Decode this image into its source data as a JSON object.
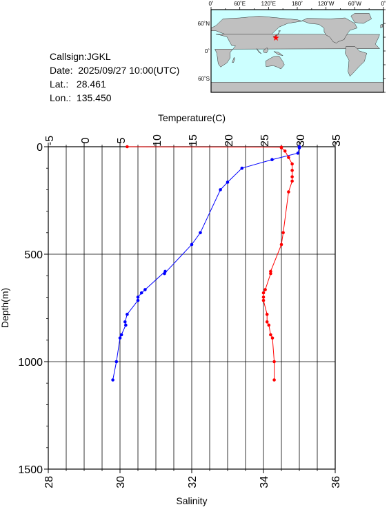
{
  "info": {
    "callsign_label": "Callsign:",
    "callsign": "JGKL",
    "date_label": "Date:",
    "date": "2025/09/27 10:00(UTC)",
    "lat_label": "Lat.:",
    "lat": "28.461",
    "lon_label": "Lon.:",
    "lon": "135.450"
  },
  "map": {
    "top_labels": [
      "0˚",
      "60˚E",
      "120˚E",
      "180˚",
      "120˚W",
      "60˚W",
      "0˚"
    ],
    "right_labels": [
      "60˚N",
      "0˚",
      "60˚S"
    ],
    "land_color": "#c0c0c0",
    "ocean_color": "#ccffff",
    "marker_color": "#ff0000",
    "station_lon": 135.45,
    "station_lat": 28.461
  },
  "chart_data": {
    "type": "line",
    "xlabel_top": "Temperature(C)",
    "xlabel_bottom": "Salinity",
    "ylabel": "Depth(m)",
    "top_ticks": [
      "-5",
      "0",
      "5",
      "10",
      "15",
      "20",
      "25",
      "30",
      "35"
    ],
    "bottom_ticks": [
      "28",
      "30",
      "32",
      "34",
      "36"
    ],
    "y_ticks": [
      "0",
      "500",
      "1000",
      "1500"
    ],
    "temperature_range": [
      -5,
      35
    ],
    "salinity_range": [
      28,
      36
    ],
    "depth_range": [
      0,
      1500
    ],
    "grid": true,
    "series": [
      {
        "quantity": "temperature",
        "color": "#0000ff",
        "points": [
          [
            30.0,
            0
          ],
          [
            30.0,
            2
          ],
          [
            30.0,
            5
          ],
          [
            29.8,
            30
          ],
          [
            26.2,
            60
          ],
          [
            22.0,
            100
          ],
          [
            20.0,
            165
          ],
          [
            19.0,
            200
          ],
          [
            16.2,
            400
          ],
          [
            15.0,
            455
          ],
          [
            11.2,
            590
          ],
          [
            11.3,
            580
          ],
          [
            8.5,
            665
          ],
          [
            8.0,
            680
          ],
          [
            7.5,
            700
          ],
          [
            7.5,
            715
          ],
          [
            6.0,
            780
          ],
          [
            5.7,
            815
          ],
          [
            5.8,
            830
          ],
          [
            5.2,
            875
          ],
          [
            5.0,
            890
          ],
          [
            4.5,
            1000
          ],
          [
            4.0,
            1085
          ]
        ]
      },
      {
        "quantity": "salinity",
        "color": "#ff0000",
        "points": [
          [
            30.2,
            0
          ],
          [
            34.5,
            2
          ],
          [
            34.5,
            5
          ],
          [
            34.6,
            20
          ],
          [
            34.7,
            50
          ],
          [
            34.8,
            80
          ],
          [
            34.8,
            110
          ],
          [
            34.8,
            140
          ],
          [
            34.8,
            160
          ],
          [
            34.7,
            210
          ],
          [
            34.55,
            400
          ],
          [
            34.5,
            455
          ],
          [
            34.2,
            580
          ],
          [
            34.2,
            590
          ],
          [
            34.05,
            665
          ],
          [
            34.0,
            680
          ],
          [
            34.0,
            700
          ],
          [
            34.0,
            715
          ],
          [
            34.1,
            780
          ],
          [
            34.1,
            815
          ],
          [
            34.15,
            830
          ],
          [
            34.2,
            875
          ],
          [
            34.25,
            890
          ],
          [
            34.3,
            1000
          ],
          [
            34.3,
            1085
          ]
        ]
      }
    ]
  }
}
